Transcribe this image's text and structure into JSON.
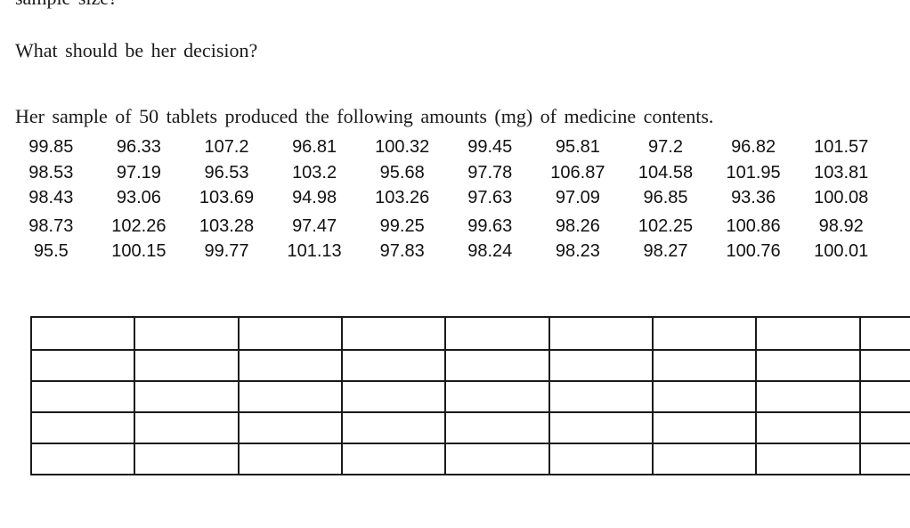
{
  "page": {
    "background": "#ffffff",
    "text_color": "#1a1a1a",
    "table_border_color": "#1a1a1a"
  },
  "document": {
    "paragraphs": {
      "cutoff_line": "sample size?",
      "decision_question": "What should be her decision?",
      "sample_intro": "Her sample of 50 tablets produced the following amounts (mg) of medicine contents."
    },
    "sample_values": [
      [
        "99.85",
        "96.33",
        "107.2",
        "96.81",
        "100.32",
        "99.45",
        "95.81",
        "97.2",
        "96.82",
        "101.57"
      ],
      [
        "98.53",
        "97.19",
        "96.53",
        "103.2",
        "95.68",
        "97.78",
        "106.87",
        "104.58",
        "101.95",
        "103.81"
      ],
      [
        "98.43",
        "93.06",
        "103.69",
        "94.98",
        "103.26",
        "97.63",
        "97.09",
        "96.85",
        "93.36",
        "100.08"
      ],
      [
        "98.73",
        "102.26",
        "103.28",
        "97.47",
        "99.25",
        "99.63",
        "98.26",
        "102.25",
        "100.86",
        "98.92"
      ],
      [
        "95.5",
        "100.15",
        "99.77",
        "101.13",
        "97.83",
        "98.24",
        "98.23",
        "98.27",
        "100.76",
        "100.01"
      ]
    ],
    "empty_table": {
      "rows": 5,
      "columns": 9
    }
  }
}
